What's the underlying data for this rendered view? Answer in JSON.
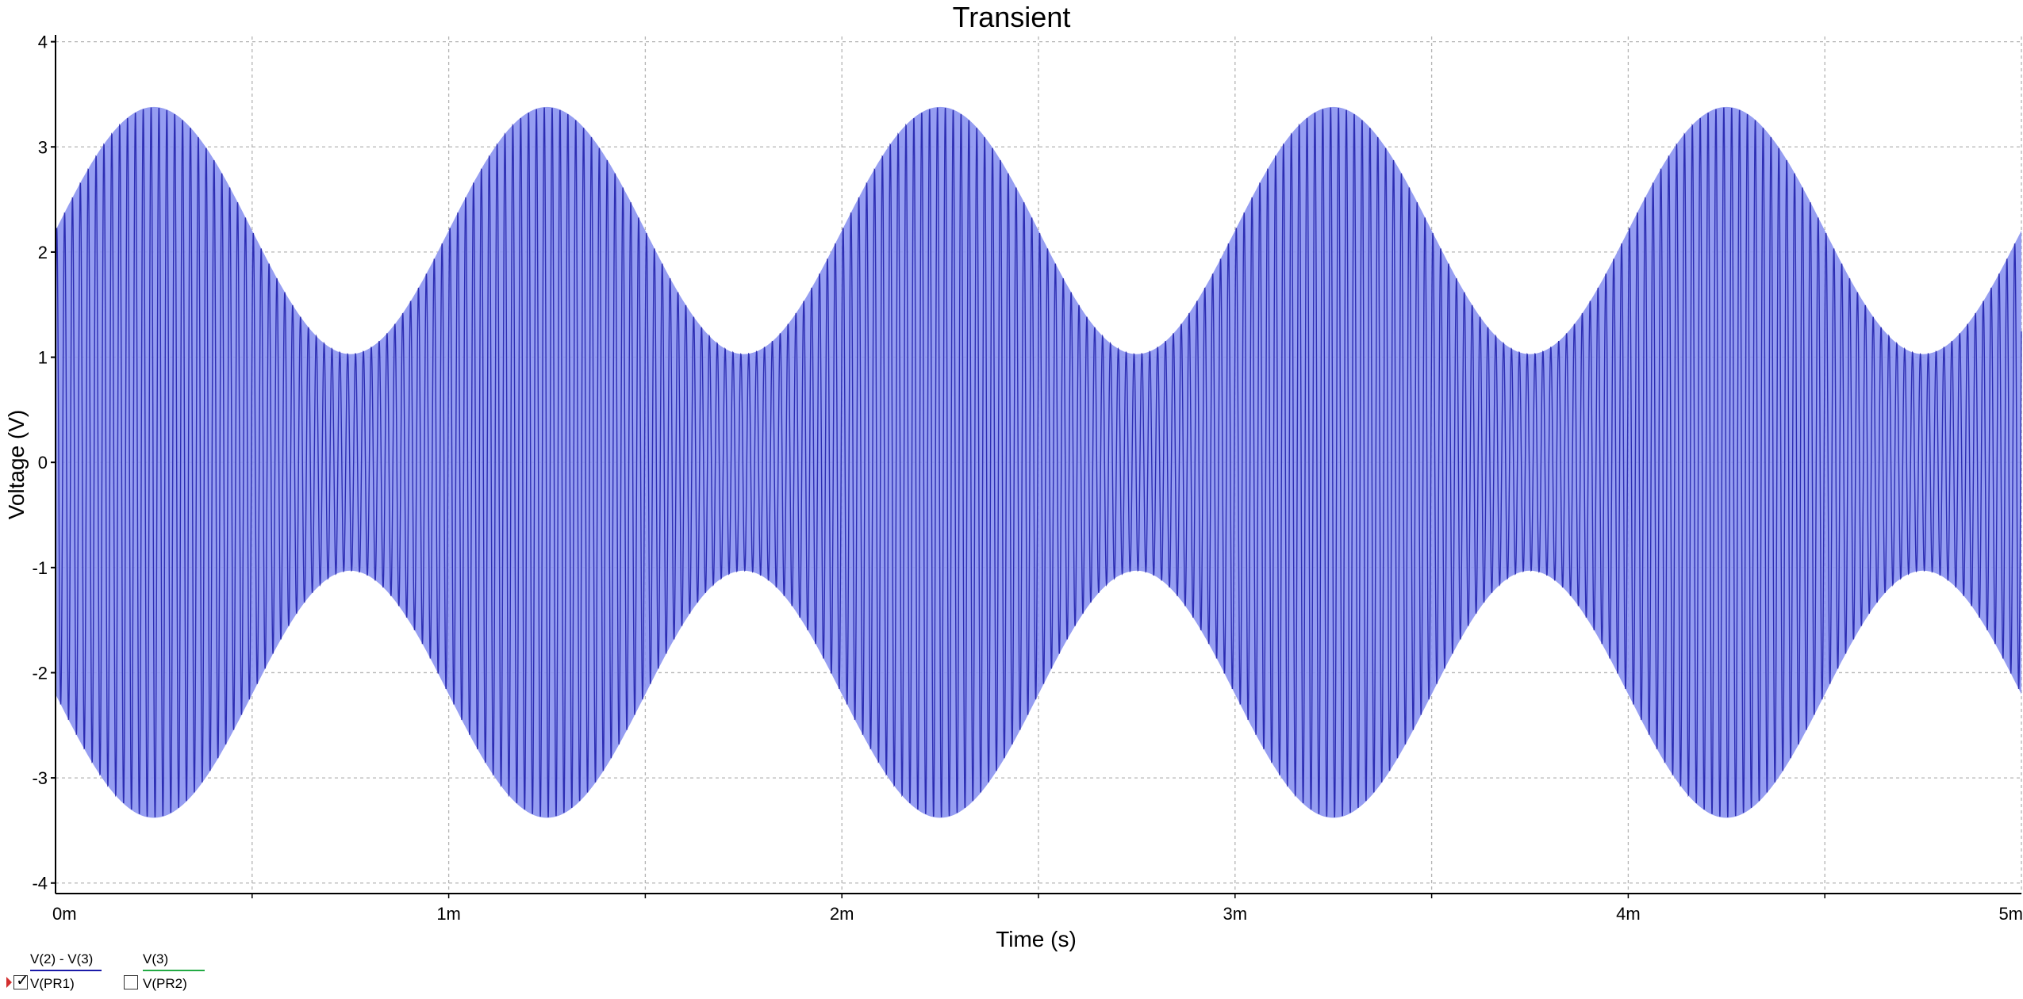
{
  "chart_data": {
    "type": "line",
    "title": "Transient",
    "xlabel": "Time (s)",
    "ylabel": "Voltage (V)",
    "xlim": [
      0,
      0.005
    ],
    "ylim": [
      -4.1,
      4.05
    ],
    "x_ticks": [
      0,
      0.001,
      0.002,
      0.003,
      0.004,
      0.005
    ],
    "x_tick_labels": [
      "0m",
      "1m",
      "2m",
      "3m",
      "4m",
      "5m"
    ],
    "y_ticks": [
      4,
      3,
      2,
      1,
      0,
      -1,
      -2,
      -3,
      -4
    ],
    "y_tick_labels": [
      "4",
      "3",
      "2",
      "1",
      "0",
      "-1",
      "-2",
      "-3",
      "-4"
    ],
    "grid": true,
    "series": [
      {
        "name": "V(PR1)",
        "expression": "V(2) - V(3)",
        "color": "#1a1aa8",
        "fill_color": "#8a92f0",
        "shape": "amplitude-modulated sine",
        "envelope_max": 3.38,
        "envelope_min": 1.03,
        "envelope_period": 0.001,
        "envelope_first_peak": 0.00025,
        "carrier_cycles_per_envelope_period": 50,
        "visible": true
      },
      {
        "name": "V(PR2)",
        "expression": "V(3)",
        "color": "#22aa44",
        "visible": false
      }
    ]
  },
  "legend": {
    "items": [
      {
        "expression": "V(2) - V(3)",
        "name": "V(PR1)",
        "checked": true,
        "color": "#1a1aa8"
      },
      {
        "expression": "V(3)",
        "name": "V(PR2)",
        "checked": false,
        "color": "#22aa44"
      }
    ]
  }
}
